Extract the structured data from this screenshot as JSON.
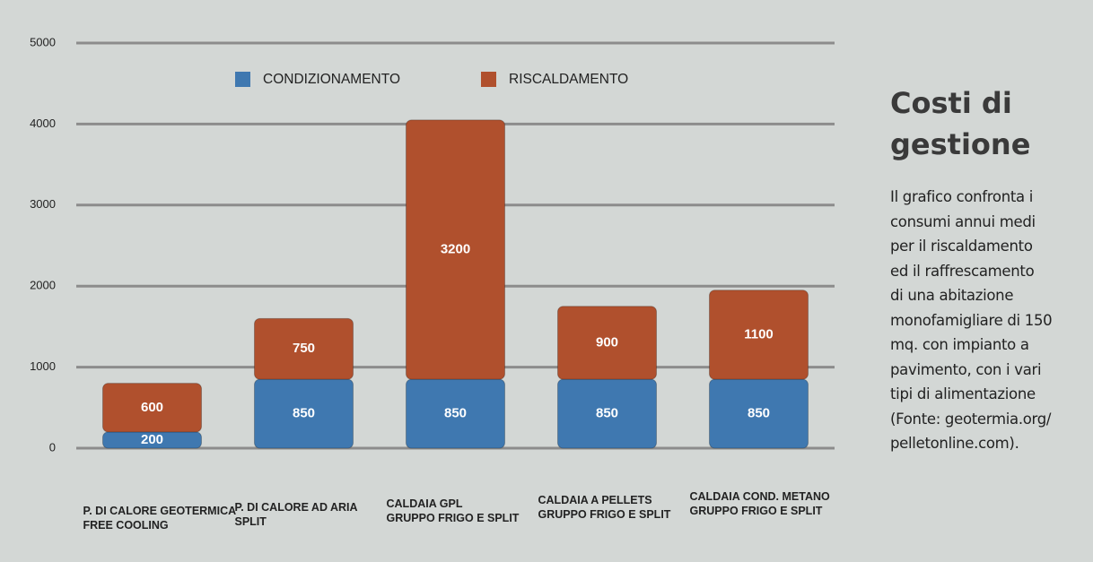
{
  "chart_data": {
    "type": "stacked_bar",
    "categories": [
      "P. DI CALORE GEOTERMICA\nFREE COOLING",
      "P. DI CALORE AD ARIA\nSPLIT",
      "CALDAIA GPL\nGRUPPO FRIGO E SPLIT",
      "CALDAIA A PELLETS\nGRUPPO FRIGO E SPLIT",
      "CALDAIA COND. METANO\nGRUPPO FRIGO E SPLIT"
    ],
    "series": [
      {
        "name": "CONDIZIONAMENTO",
        "color": "#3f78b0",
        "values": [
          200,
          850,
          850,
          850,
          850
        ]
      },
      {
        "name": "RISCALDAMENTO",
        "color": "#b0502d",
        "values": [
          600,
          750,
          3200,
          900,
          1100
        ]
      }
    ],
    "ylim": [
      0,
      5000
    ],
    "yticks": [
      0,
      1000,
      2000,
      3000,
      4000,
      5000
    ],
    "grid": true
  },
  "sidebar": {
    "title": "Costi di\ngestione",
    "text": "Il grafico confronta i\nconsumi annui medi\nper il riscaldamento\ned il raffrescamento\ndi una abitazione\nmonofamigliare di 150\nmq. con impianto a\npavimento, con i vari\ntipi di alimentazione\n(Fonte: geotermia.org/\npelletonline.com)."
  }
}
